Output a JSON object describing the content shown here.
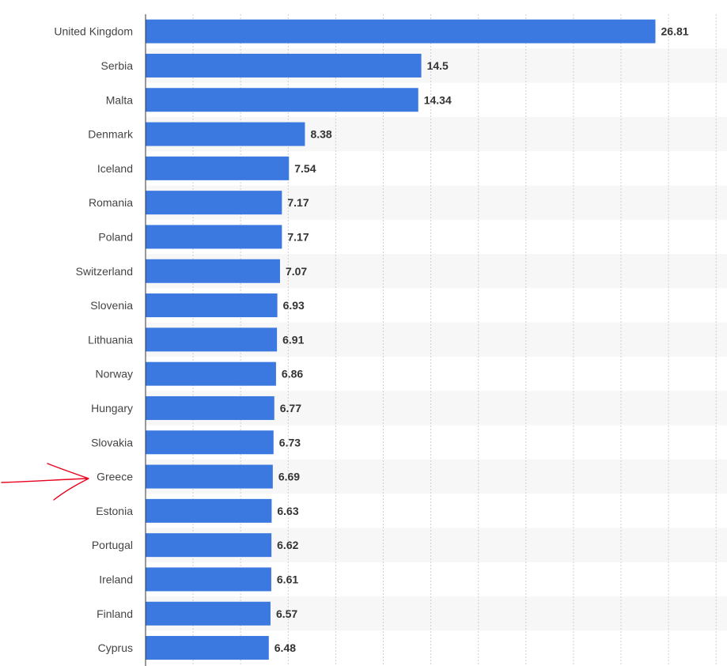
{
  "chart_data": {
    "type": "bar",
    "orientation": "horizontal",
    "categories": [
      "United Kingdom",
      "Serbia",
      "Malta",
      "Denmark",
      "Iceland",
      "Romania",
      "Poland",
      "Switzerland",
      "Slovenia",
      "Lithuania",
      "Norway",
      "Hungary",
      "Slovakia",
      "Greece",
      "Estonia",
      "Portugal",
      "Ireland",
      "Finland",
      "Cyprus"
    ],
    "values": [
      26.81,
      14.5,
      14.34,
      8.38,
      7.54,
      7.17,
      7.17,
      7.07,
      6.93,
      6.91,
      6.86,
      6.77,
      6.73,
      6.69,
      6.63,
      6.62,
      6.61,
      6.57,
      6.48
    ],
    "value_labels": [
      "26.81",
      "14.5",
      "14.34",
      "8.38",
      "7.54",
      "7.17",
      "7.17",
      "7.07",
      "6.93",
      "6.91",
      "6.86",
      "6.77",
      "6.73",
      "6.69",
      "6.63",
      "6.62",
      "6.61",
      "6.57",
      "6.48"
    ],
    "xlim": [
      0,
      30
    ],
    "gridlines": "vertical dashed",
    "bar_color": "#3b78e0",
    "annotation": {
      "kind": "hand-drawn arrow",
      "target": "Greece",
      "color": "#e8001c"
    }
  }
}
